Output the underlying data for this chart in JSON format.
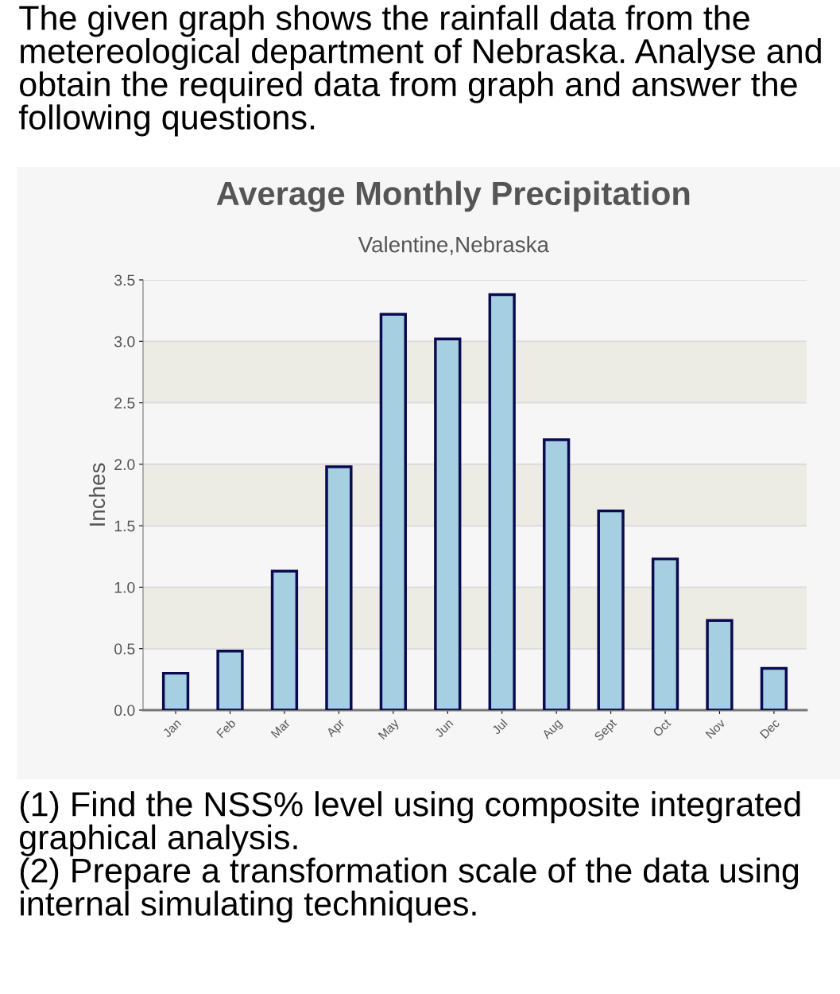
{
  "chart_data": {
    "type": "bar",
    "title": "Average Monthly Precipitation",
    "subtitle": "Valentine,Nebraska",
    "ylabel": "Inches",
    "categories": [
      "Jan",
      "Feb",
      "Mar",
      "Apr",
      "May",
      "Jun",
      "Jul",
      "Aug",
      "Sept",
      "Oct",
      "Nov",
      "Dec"
    ],
    "values": [
      0.3,
      0.48,
      1.13,
      1.98,
      3.22,
      3.02,
      3.38,
      2.2,
      1.62,
      1.23,
      0.73,
      0.34
    ],
    "color": "#a6cfe2",
    "ylim": [
      0,
      3.5
    ],
    "yticks": [
      {
        "value": 0,
        "label": "0.0"
      },
      0.5,
      {
        "value": 1,
        "label": "1.0"
      },
      1.5,
      {
        "value": 2,
        "label": "2.0"
      },
      2.5,
      {
        "value": 3,
        "label": "3.0"
      },
      3.5
    ],
    "grid": "y",
    "bands": [
      {
        "axis": "y",
        "from": 0.5,
        "to": 1.0,
        "color": "#ecebe4"
      },
      {
        "axis": "y",
        "from": 1.5,
        "to": 2.0,
        "color": "#ecebe4"
      },
      {
        "axis": "y",
        "from": 2.5,
        "to": 3.0,
        "color": "#ecebe4"
      }
    ],
    "annotations": [
      "The given graph shows the rainfall data from the metereological department of Nebraska. Analyse and obtain the required data from graph and answer the following questions.",
      "(1) Find the NSS% level using composite integrated graphical analysis.\n(2) Prepare a transformation scale of the data using internal simulating techniques."
    ]
  }
}
